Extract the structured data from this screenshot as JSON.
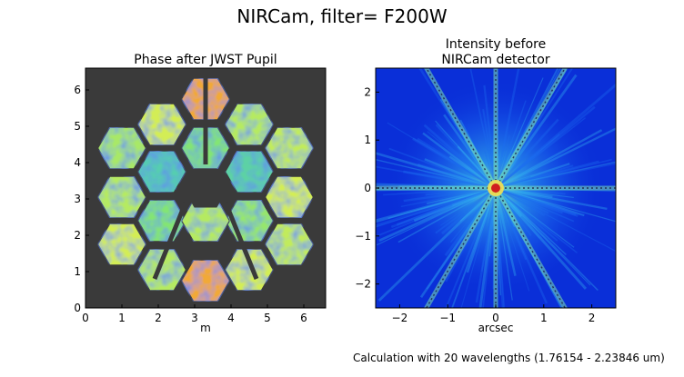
{
  "suptitle": "NIRCam, filter= F200W",
  "footer": "Calculation with 20 wavelengths (1.76154 - 2.23846 um)",
  "chart_data": [
    {
      "type": "heatmap",
      "title": "Phase after JWST Pupil",
      "xlabel": "m",
      "ylabel": "",
      "xlim": [
        0,
        6.6
      ],
      "ylim": [
        0,
        6.6
      ],
      "xticks": [
        "0",
        "1",
        "2",
        "3",
        "4",
        "5",
        "6"
      ],
      "yticks": [
        "0",
        "1",
        "2",
        "3",
        "4",
        "5",
        "6"
      ],
      "background_color": "#3a3a3a",
      "colors": [
        "#1f3bd6",
        "#35b6e6",
        "#77e37a",
        "#f2f04a",
        "#f07a2a",
        "#d01f1f"
      ],
      "segments": [
        {
          "cx": 3.3,
          "cy": 5.75,
          "v": 0.72
        },
        {
          "cx": 2.1,
          "cy": 5.05,
          "v": 0.55
        },
        {
          "cx": 4.5,
          "cy": 5.05,
          "v": 0.5
        },
        {
          "cx": 1.0,
          "cy": 4.4,
          "v": 0.48
        },
        {
          "cx": 3.3,
          "cy": 4.4,
          "v": 0.42
        },
        {
          "cx": 5.6,
          "cy": 4.4,
          "v": 0.52
        },
        {
          "cx": 2.1,
          "cy": 3.75,
          "v": 0.3
        },
        {
          "cx": 4.5,
          "cy": 3.75,
          "v": 0.32
        },
        {
          "cx": 1.0,
          "cy": 3.05,
          "v": 0.5
        },
        {
          "cx": 5.6,
          "cy": 3.05,
          "v": 0.55
        },
        {
          "cx": 2.1,
          "cy": 2.4,
          "v": 0.42
        },
        {
          "cx": 4.5,
          "cy": 2.4,
          "v": 0.45
        },
        {
          "cx": 1.0,
          "cy": 1.75,
          "v": 0.55
        },
        {
          "cx": 3.3,
          "cy": 2.4,
          "v": 0.5
        },
        {
          "cx": 5.6,
          "cy": 1.75,
          "v": 0.52
        },
        {
          "cx": 2.1,
          "cy": 1.05,
          "v": 0.5
        },
        {
          "cx": 4.5,
          "cy": 1.05,
          "v": 0.55
        },
        {
          "cx": 3.3,
          "cy": 0.75,
          "v": 0.72
        }
      ]
    },
    {
      "type": "heatmap",
      "title": "Intensity before NIRCam detector",
      "title_lines": [
        "Intensity before",
        "NIRCam detector"
      ],
      "xlabel": "arcsec",
      "ylabel": "",
      "xlim": [
        -2.5,
        2.5
      ],
      "ylim": [
        -2.5,
        2.5
      ],
      "xticks": [
        "−2",
        "−1",
        "0",
        "1",
        "2"
      ],
      "yticks": [
        "−2",
        "−1",
        "0",
        "1",
        "2"
      ],
      "xtick_values": [
        -2,
        -1,
        0,
        1,
        2
      ],
      "ytick_values": [
        -2,
        -1,
        0,
        1,
        2
      ],
      "background_color": "#0a2fd8",
      "peak": {
        "x": 0,
        "y": 0
      },
      "spike_angles_deg": [
        0,
        60,
        120,
        90
      ],
      "colors": [
        "#0a2fd8",
        "#1c6ef0",
        "#33b5f0",
        "#7ee0b0",
        "#f5e050",
        "#d01f1f"
      ]
    }
  ]
}
